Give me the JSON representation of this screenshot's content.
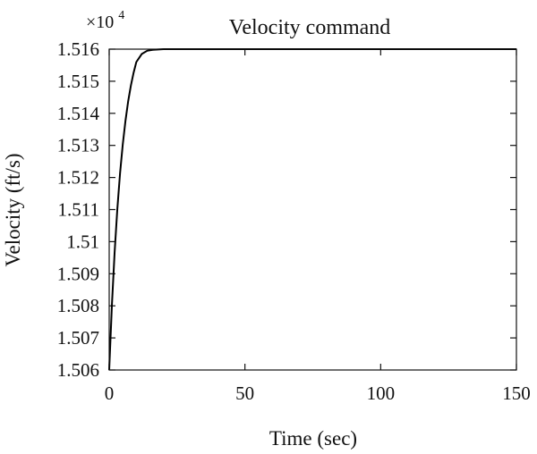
{
  "chart_data": {
    "type": "line",
    "title": "Velocity command",
    "xlabel": "Time (sec)",
    "ylabel": "Velocity (ft/s)",
    "y_multiplier": {
      "base": "×10",
      "exponent": "4"
    },
    "xlim": [
      0,
      150
    ],
    "ylim": [
      1.506,
      1.516
    ],
    "grid": false,
    "legend": "none",
    "x_ticks": [
      "0",
      "50",
      "100",
      "150"
    ],
    "y_ticks": [
      "1.506",
      "1.507",
      "1.508",
      "1.509",
      "1.51",
      "1.511",
      "1.512",
      "1.513",
      "1.514",
      "1.515",
      "1.516"
    ],
    "series": [
      {
        "color": "#000000",
        "x": [
          0,
          1,
          2,
          3,
          4,
          5,
          6,
          7,
          8,
          9,
          10,
          12,
          14,
          16,
          18,
          20,
          22,
          25,
          28,
          32,
          36,
          40,
          50,
          60,
          80,
          100,
          120,
          150
        ],
        "y": [
          1.506,
          1.50802,
          1.50967,
          1.51102,
          1.51213,
          1.51303,
          1.51377,
          1.51438,
          1.51487,
          1.51527,
          1.5156,
          1.51585,
          1.51595,
          1.51598,
          1.51599,
          1.516,
          1.516,
          1.516,
          1.516,
          1.516,
          1.516,
          1.516,
          1.516,
          1.516,
          1.516,
          1.516,
          1.516,
          1.516
        ]
      }
    ]
  }
}
